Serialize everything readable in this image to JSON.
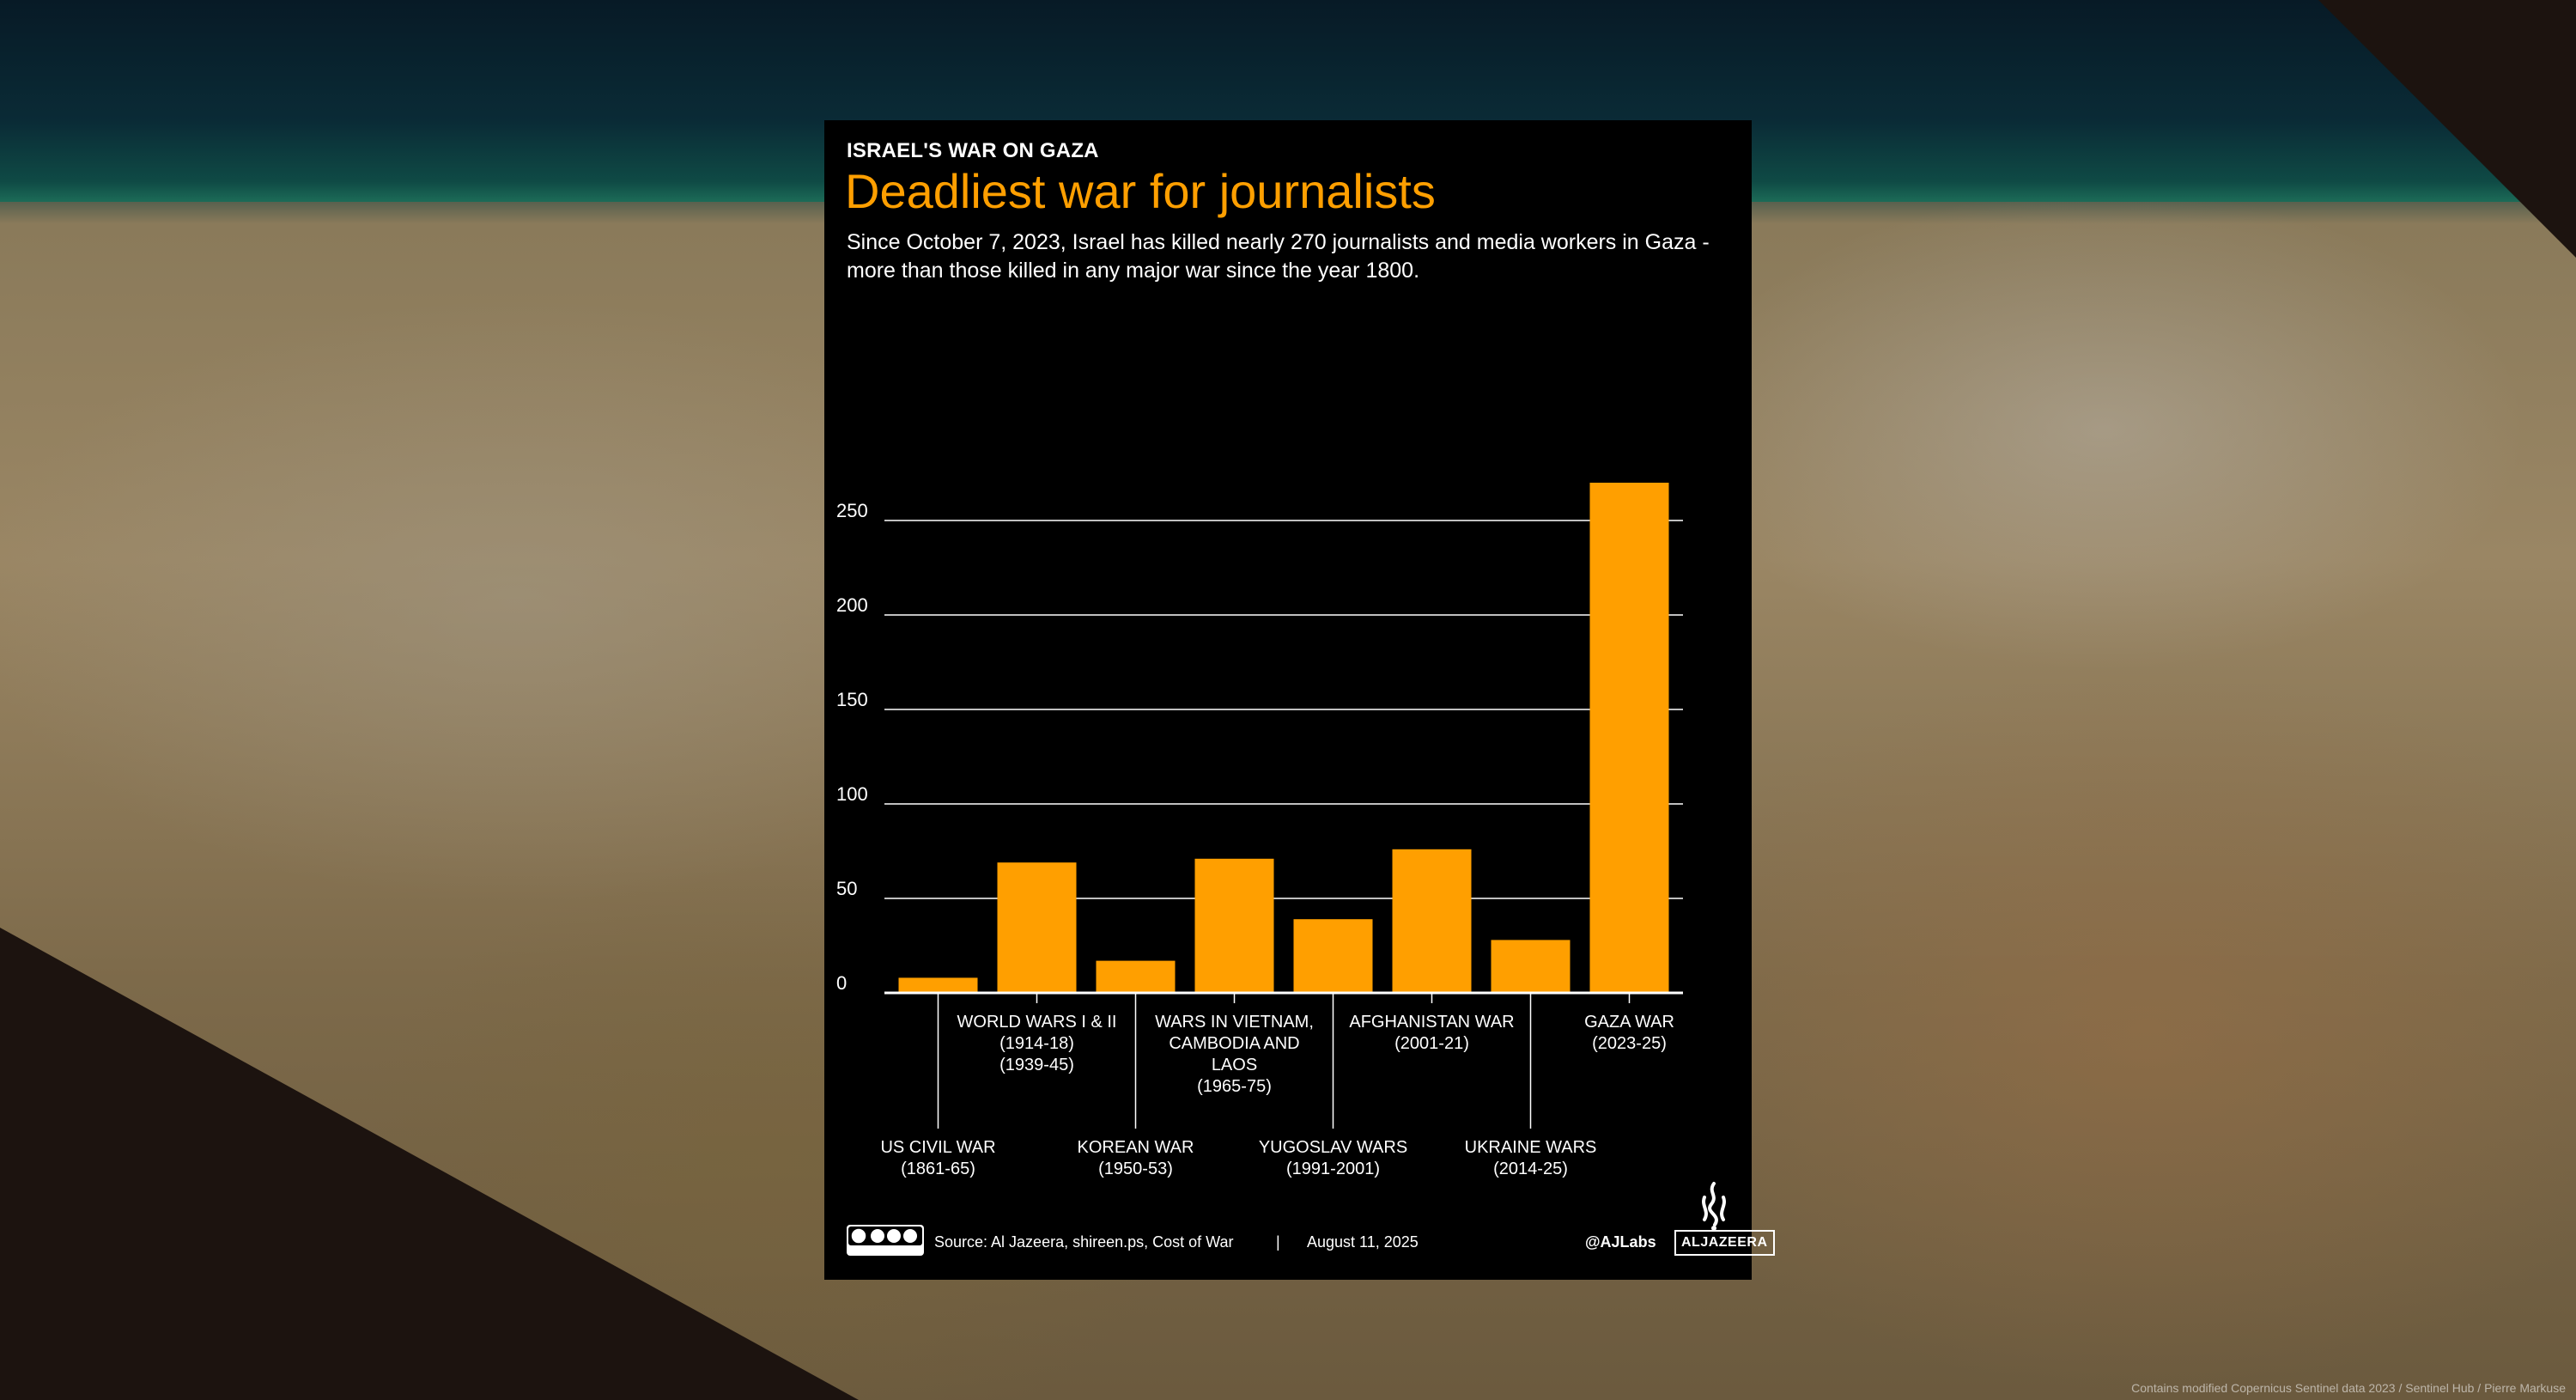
{
  "header": {
    "kicker": "ISRAEL'S WAR ON GAZA",
    "title": "Deadliest war for journalists",
    "subtitle": "Since October 7, 2023, Israel has killed nearly 270 journalists and media workers in Gaza - more than those killed in any major war since the year 1800."
  },
  "footer": {
    "license_icon": "cc-by-nc-sa-icon",
    "source": "Source:  Al Jazeera, shireen.ps, Cost of War",
    "separator": "|",
    "date": "August 11, 2025",
    "handle": "@AJLabs",
    "brand": "ALJAZEERA",
    "brand_icon": "al-jazeera-logo-icon"
  },
  "image_credit": "Contains modified Copernicus Sentinel data 2023 / Sentinel Hub / Pierre Markuse",
  "colors": {
    "bar": "#ff9f00",
    "title": "#ff9f00",
    "background": "#000000",
    "text": "#ffffff",
    "grid": "#ffffff"
  },
  "chart_data": {
    "type": "bar",
    "title": "Deadliest war for journalists",
    "categories": [
      "US CIVIL WAR (1861-65)",
      "WORLD WARS I & II (1914-18) (1939-45)",
      "KOREAN WAR (1950-53)",
      "WARS IN VIETNAM, CAMBODIA AND LAOS (1965-75)",
      "YUGOSLAV WARS (1991-2001)",
      "AFGHANISTAN WAR (2001-21)",
      "UKRAINE WARS (2014-25)",
      "GAZA WAR (2023-25)"
    ],
    "category_lines": [
      [
        "US CIVIL WAR",
        "(1861-65)"
      ],
      [
        "WORLD WARS I & II",
        "(1914-18)",
        "(1939-45)"
      ],
      [
        "KOREAN WAR",
        "(1950-53)"
      ],
      [
        "WARS IN VIETNAM,",
        "CAMBODIA AND",
        "LAOS",
        "(1965-75)"
      ],
      [
        "YUGOSLAV WARS",
        "(1991-2001)"
      ],
      [
        "AFGHANISTAN WAR",
        "(2001-21)"
      ],
      [
        "UKRAINE WARS",
        "(2014-25)"
      ],
      [
        "GAZA WAR",
        "(2023-25)"
      ]
    ],
    "label_position": [
      "low",
      "high",
      "low",
      "high",
      "low",
      "high",
      "low",
      "high"
    ],
    "values": [
      8,
      69,
      17,
      71,
      39,
      76,
      28,
      270
    ],
    "yticks": [
      0,
      50,
      100,
      150,
      200,
      250
    ],
    "ylim": [
      0,
      280
    ],
    "xlabel": "",
    "ylabel": "",
    "grid": true,
    "legend": "none"
  }
}
